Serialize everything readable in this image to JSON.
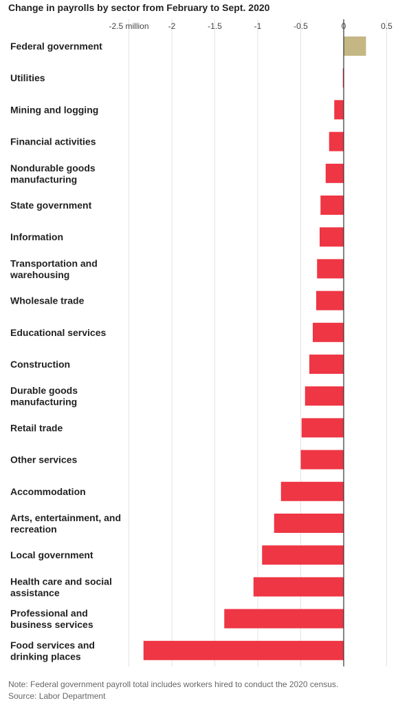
{
  "chart_data": {
    "type": "bar",
    "orientation": "horizontal",
    "title": "Change in payrolls by sector from February to Sept. 2020",
    "xlim": [
      -2.5,
      0.5
    ],
    "x_ticks": [
      {
        "value": -2.5,
        "label": "-2.5 million"
      },
      {
        "value": -2,
        "label": "-2"
      },
      {
        "value": -1.5,
        "label": "-1.5"
      },
      {
        "value": -1,
        "label": "-1"
      },
      {
        "value": -0.5,
        "label": "-0.5"
      },
      {
        "value": 0,
        "label": "0"
      },
      {
        "value": 0.5,
        "label": "0.5"
      }
    ],
    "grid": true,
    "categories": [
      [
        "Federal government"
      ],
      [
        "Utilities"
      ],
      [
        "Mining and logging"
      ],
      [
        "Financial activities"
      ],
      [
        "Nondurable goods",
        "manufacturing"
      ],
      [
        "State government"
      ],
      [
        "Information"
      ],
      [
        "Transportation and",
        "warehousing"
      ],
      [
        "Wholesale trade"
      ],
      [
        "Educational services"
      ],
      [
        "Construction"
      ],
      [
        "Durable goods",
        "manufacturing"
      ],
      [
        "Retail trade"
      ],
      [
        "Other services"
      ],
      [
        "Accommodation"
      ],
      [
        "Arts, entertainment, and",
        "recreation"
      ],
      [
        "Local government"
      ],
      [
        "Health care and social",
        "assistance"
      ],
      [
        "Professional and",
        "business services"
      ],
      [
        "Food services and",
        "drinking places"
      ]
    ],
    "values": [
      0.26,
      -0.01,
      -0.11,
      -0.17,
      -0.21,
      -0.27,
      -0.28,
      -0.31,
      -0.32,
      -0.36,
      -0.4,
      -0.45,
      -0.49,
      -0.5,
      -0.73,
      -0.81,
      -0.95,
      -1.05,
      -1.39,
      -2.33
    ],
    "colors": {
      "positive": "#c4b784",
      "negative": "#ee3644",
      "grid": "#e2e2e2",
      "zero_line": "#333333"
    }
  },
  "footer": {
    "note": "Note: Federal government payroll total includes workers hired to conduct the 2020 census.",
    "source": "Source: Labor Department"
  }
}
